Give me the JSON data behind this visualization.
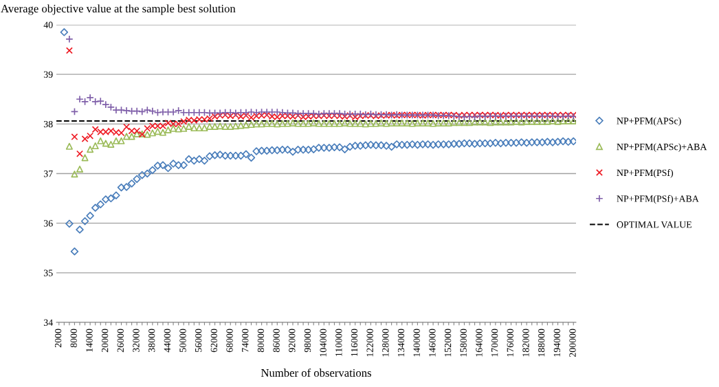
{
  "chart_data": {
    "type": "scatter",
    "title": "Average objective value at the sample best solution",
    "xlabel": "Number of observations",
    "categories": [
      "2000",
      null,
      null,
      "8000",
      null,
      null,
      "14000",
      null,
      null,
      "20000",
      null,
      null,
      "26000",
      null,
      null,
      "32000",
      null,
      null,
      "38000",
      null,
      null,
      "44000",
      null,
      null,
      "50000",
      null,
      null,
      "56000",
      null,
      null,
      "62000",
      null,
      null,
      "68000",
      null,
      null,
      "74000",
      null,
      null,
      "80000",
      null,
      null,
      "86000",
      null,
      null,
      "92000",
      null,
      null,
      "98000",
      null,
      null,
      "104000",
      null,
      null,
      "110000",
      null,
      null,
      "116000",
      null,
      null,
      "122000",
      null,
      null,
      "128000",
      null,
      null,
      "134000",
      null,
      null,
      "140000",
      null,
      null,
      "146000",
      null,
      null,
      "152000",
      null,
      null,
      "158000",
      null,
      null,
      "164000",
      null,
      null,
      "170000",
      null,
      null,
      "176000",
      null,
      null,
      "182000",
      null,
      null,
      "188000",
      null,
      null,
      "194000",
      null,
      null,
      "200000"
    ],
    "ylim": [
      34,
      40
    ],
    "yticks": [
      34,
      35,
      36,
      37,
      38,
      39,
      40
    ],
    "grid": "y",
    "legend": "right",
    "series": [
      {
        "name": "NP+PFM(APSc)",
        "color": "#4a7ebb",
        "marker": "diamond",
        "values": [
          null,
          39.85,
          35.99,
          35.43,
          35.87,
          36.04,
          36.15,
          36.31,
          36.38,
          36.48,
          36.5,
          36.56,
          36.72,
          36.73,
          36.8,
          36.89,
          36.97,
          37.0,
          37.07,
          37.16,
          37.17,
          37.11,
          37.2,
          37.17,
          37.17,
          37.29,
          37.26,
          37.29,
          37.26,
          37.35,
          37.37,
          37.38,
          37.36,
          37.36,
          37.36,
          37.36,
          37.39,
          37.32,
          37.45,
          37.46,
          37.46,
          37.47,
          37.47,
          37.48,
          37.48,
          37.44,
          37.48,
          37.48,
          37.48,
          37.49,
          37.52,
          37.52,
          37.52,
          37.53,
          37.53,
          37.49,
          37.54,
          37.56,
          37.56,
          37.57,
          37.58,
          37.57,
          37.57,
          37.56,
          37.54,
          37.59,
          37.58,
          37.58,
          37.59,
          37.58,
          37.59,
          37.59,
          37.58,
          37.59,
          37.59,
          37.59,
          37.6,
          37.6,
          37.61,
          37.61,
          37.6,
          37.61,
          37.61,
          37.61,
          37.62,
          37.61,
          37.62,
          37.62,
          37.62,
          37.63,
          37.62,
          37.63,
          37.63,
          37.63,
          37.64,
          37.63,
          37.64,
          37.65,
          37.64,
          37.65
        ]
      },
      {
        "name": "NP+PFM(APSc)+ABA",
        "color": "#9bbb59",
        "marker": "triangle",
        "values": [
          null,
          null,
          37.55,
          36.99,
          37.09,
          37.32,
          37.49,
          37.56,
          37.66,
          37.61,
          37.59,
          37.66,
          37.66,
          37.75,
          37.75,
          37.8,
          37.8,
          37.79,
          37.82,
          37.85,
          37.83,
          37.88,
          37.91,
          37.9,
          37.91,
          37.95,
          37.92,
          37.92,
          37.92,
          37.95,
          37.95,
          37.96,
          37.95,
          37.95,
          37.96,
          37.97,
          37.98,
          37.99,
          38.0,
          38.0,
          38.01,
          38.01,
          38.0,
          38.01,
          38.01,
          38.02,
          38.01,
          38.01,
          38.01,
          38.02,
          38.01,
          38.01,
          38.01,
          38.01,
          38.01,
          38.02,
          38.01,
          38.01,
          38.01,
          38.0,
          38.01,
          38.01,
          38.02,
          38.01,
          38.02,
          38.02,
          38.02,
          38.02,
          38.01,
          38.02,
          38.02,
          38.02,
          38.01,
          38.02,
          38.02,
          38.02,
          38.03,
          38.03,
          38.03,
          38.03,
          38.04,
          38.04,
          38.04,
          38.03,
          38.04,
          38.04,
          38.04,
          38.04,
          38.05,
          38.04,
          38.05,
          38.05,
          38.05,
          38.05,
          38.05,
          38.06,
          38.05,
          38.06,
          38.06,
          38.06
        ]
      },
      {
        "name": "NP+PFM(PSf)",
        "color": "#ee1c25",
        "marker": "cross",
        "values": [
          null,
          null,
          39.48,
          37.74,
          37.4,
          37.7,
          37.76,
          37.89,
          37.84,
          37.84,
          37.86,
          37.83,
          37.82,
          37.94,
          37.86,
          37.86,
          37.79,
          37.91,
          37.96,
          37.96,
          37.96,
          38.02,
          38.0,
          38.0,
          38.05,
          38.08,
          38.07,
          38.09,
          38.09,
          38.11,
          38.15,
          38.17,
          38.18,
          38.16,
          38.18,
          38.15,
          38.17,
          38.13,
          38.16,
          38.17,
          38.18,
          38.15,
          38.14,
          38.16,
          38.16,
          38.15,
          38.17,
          38.14,
          38.15,
          38.16,
          38.16,
          38.17,
          38.16,
          38.17,
          38.16,
          38.15,
          38.17,
          38.14,
          38.16,
          38.17,
          38.17,
          38.16,
          38.17,
          38.17,
          38.18,
          38.17,
          38.18,
          38.18,
          38.18,
          38.18,
          38.17,
          38.18,
          38.18,
          38.18,
          38.18,
          38.18,
          38.18,
          38.17,
          38.18,
          38.18,
          38.18,
          38.18,
          38.18,
          38.18,
          38.18,
          38.17,
          38.18,
          38.18,
          38.18,
          38.18,
          38.18,
          38.18,
          38.18,
          38.18,
          38.18,
          38.18,
          38.18,
          38.18,
          38.18,
          38.18
        ]
      },
      {
        "name": "NP+PFM(PSf)+ABA",
        "color": "#7f5fa9",
        "marker": "plus",
        "values": [
          null,
          null,
          39.71,
          38.25,
          38.5,
          38.45,
          38.53,
          38.45,
          38.46,
          38.39,
          38.34,
          38.28,
          38.28,
          38.27,
          38.26,
          38.26,
          38.25,
          38.28,
          38.26,
          38.23,
          38.24,
          38.24,
          38.24,
          38.27,
          38.23,
          38.23,
          38.23,
          38.23,
          38.23,
          38.22,
          38.22,
          38.22,
          38.23,
          38.23,
          38.22,
          38.23,
          38.23,
          38.24,
          38.23,
          38.24,
          38.24,
          38.24,
          38.24,
          38.23,
          38.22,
          38.22,
          38.21,
          38.21,
          38.21,
          38.21,
          38.2,
          38.21,
          38.21,
          38.21,
          38.21,
          38.2,
          38.2,
          38.2,
          38.2,
          38.19,
          38.2,
          38.19,
          38.19,
          38.19,
          38.18,
          38.19,
          38.18,
          38.18,
          38.18,
          38.18,
          38.18,
          38.18,
          38.18,
          38.17,
          38.17,
          38.17,
          38.16,
          38.15,
          38.14,
          38.15,
          38.14,
          38.16,
          38.15,
          38.16,
          38.16,
          38.16,
          38.16,
          38.16,
          38.16,
          38.16,
          38.16,
          38.16,
          38.16,
          38.16,
          38.16,
          38.16,
          38.15,
          38.15,
          38.16,
          38.15
        ]
      }
    ],
    "ref_lines": [
      {
        "axis": "y",
        "value": 38.06,
        "label": "OPTIMAL VALUE",
        "color": "#000000",
        "line_style": "dashed"
      }
    ]
  }
}
